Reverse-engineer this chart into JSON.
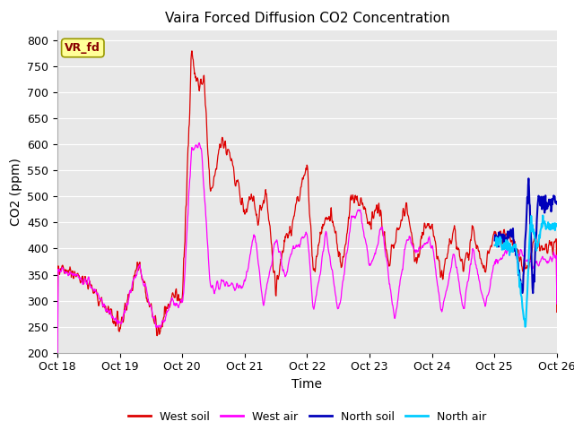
{
  "title": "Vaira Forced Diffusion CO2 Concentration",
  "xlabel": "Time",
  "ylabel": "CO2 (ppm)",
  "ylim": [
    200,
    820
  ],
  "yticks": [
    200,
    250,
    300,
    350,
    400,
    450,
    500,
    550,
    600,
    650,
    700,
    750,
    800
  ],
  "xlim_days": 8,
  "plot_bg": "#e8e8e8",
  "west_soil_color": "#dd0000",
  "west_air_color": "#ff00ff",
  "north_soil_color": "#0000bb",
  "north_air_color": "#00ccff",
  "annotation_text": "VR_fd",
  "annotation_bg": "#ffff99",
  "annotation_border": "#999900",
  "annotation_text_color": "#880000",
  "legend_labels": [
    "West soil",
    "West air",
    "North soil",
    "North air"
  ],
  "tick_labels": [
    "Oct 18",
    "Oct 19",
    "Oct 20",
    "Oct 21",
    "Oct 22",
    "Oct 23",
    "Oct 24",
    "Oct 25",
    "Oct 26"
  ]
}
